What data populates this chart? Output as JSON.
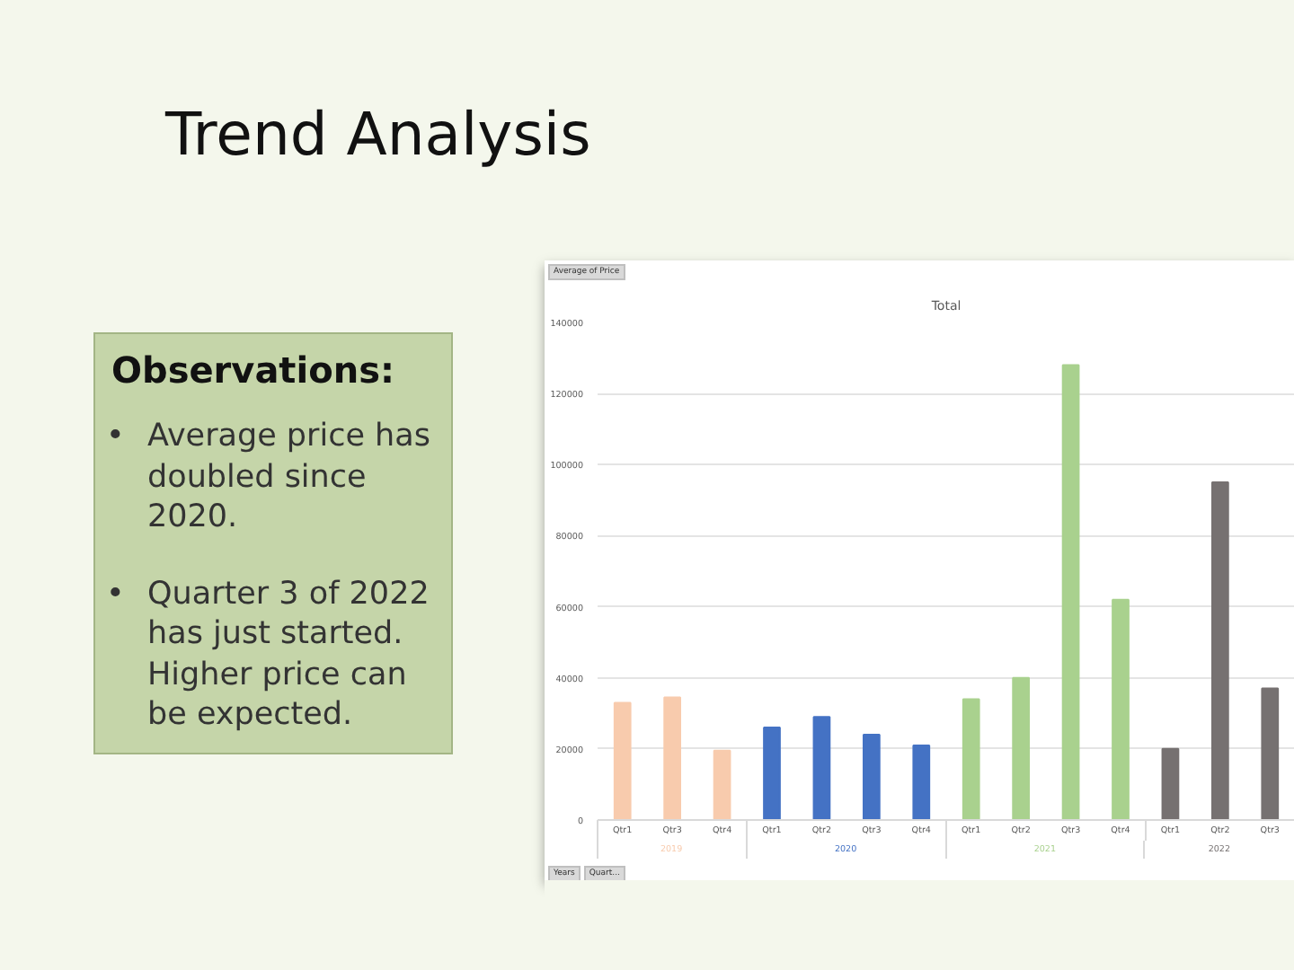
{
  "chart_data": {
    "type": "bar",
    "title": "Trend Analysis",
    "subtitle": "Total",
    "annotations": [
      "Observations:",
      "• Average price has doubled since 2020.",
      "• Quarter 3 of 2022 has just started. Higher price can be expected.",
      "Average of Price",
      "Years",
      "Quart..."
    ],
    "categories": [
      "Qtr1",
      "Qtr3",
      "Qtr4",
      "Qtr1",
      "Qtr2",
      "Qtr3",
      "Qtr4",
      "Qtr1",
      "Qtr2",
      "Qtr3",
      "Qtr4",
      "Qtr1",
      "Qtr2",
      "Qtr3"
    ],
    "series": [
      {
        "name": "2019",
        "color": "#f8cbad",
        "values": [
          33000,
          34500,
          19500,
          null,
          null,
          null,
          null,
          null,
          null,
          null,
          null,
          null,
          null,
          null
        ]
      },
      {
        "name": "2020",
        "color": "#4472c4",
        "values": [
          null,
          null,
          null,
          26000,
          29000,
          24000,
          21000,
          null,
          null,
          null,
          null,
          null,
          null,
          null
        ]
      },
      {
        "name": "2021",
        "color": "#a9d18e",
        "values": [
          null,
          null,
          null,
          null,
          null,
          null,
          null,
          34000,
          40000,
          128000,
          62000,
          null,
          null,
          null
        ]
      },
      {
        "name": "2022",
        "color": "#767171",
        "values": [
          null,
          null,
          null,
          null,
          null,
          null,
          null,
          null,
          null,
          null,
          null,
          20000,
          95000,
          37000
        ]
      }
    ],
    "ylim": [
      0,
      140000
    ],
    "yticks": [
      0,
      20000,
      40000,
      60000,
      80000,
      100000,
      120000,
      140000
    ],
    "grid": "y"
  }
}
